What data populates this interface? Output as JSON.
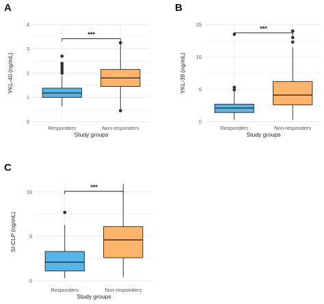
{
  "chart_data": [
    {
      "type": "box",
      "panel_label": "A",
      "title": "",
      "xlabel": "Study groups",
      "ylabel": "YKL-40 (ng/mL)",
      "ylim": [
        0,
        4
      ],
      "yticks": [
        0,
        1,
        2,
        3,
        4
      ],
      "categories": [
        "Responders",
        "Non-responders"
      ],
      "colors": [
        "#56B4E9",
        "#FDB46C"
      ],
      "boxes": [
        {
          "name": "Responders",
          "q1": 1.0,
          "median": 1.18,
          "q3": 1.38,
          "whisker_low": 0.63,
          "whisker_high": 1.9,
          "outliers": [
            2.0,
            2.1,
            2.2,
            2.3,
            2.4,
            2.7
          ]
        },
        {
          "name": "Non-responders",
          "q1": 1.45,
          "median": 1.8,
          "q3": 2.15,
          "whisker_low": 0.45,
          "whisker_high": 3.2,
          "outliers": [
            0.45,
            3.25
          ]
        }
      ],
      "significance": "***"
    },
    {
      "type": "box",
      "panel_label": "B",
      "title": "",
      "xlabel": "Study groups",
      "ylabel": "YKL-39 (ng/mL)",
      "ylim": [
        0,
        15
      ],
      "yticks": [
        0,
        5,
        10,
        15
      ],
      "categories": [
        "Responders",
        "Non-responders"
      ],
      "colors": [
        "#56B4E9",
        "#FDB46C"
      ],
      "boxes": [
        {
          "name": "Responders",
          "q1": 1.4,
          "median": 2.1,
          "q3": 2.7,
          "whisker_low": 0.3,
          "whisker_high": 4.6,
          "outliers": [
            4.9,
            5.3,
            13.5
          ]
        },
        {
          "name": "Non-responders",
          "q1": 2.6,
          "median": 4.1,
          "q3": 6.2,
          "whisker_low": 0.3,
          "whisker_high": 11.5,
          "outliers": [
            12.3,
            13.0,
            14.0
          ]
        }
      ],
      "significance": "***"
    },
    {
      "type": "box",
      "panel_label": "C",
      "title": "",
      "xlabel": "Study groups",
      "ylabel": "SI-CLP (ng/mL)",
      "ylim": [
        0,
        11
      ],
      "yticks": [
        0,
        5,
        10
      ],
      "categories": [
        "Responders",
        "Non-responders"
      ],
      "colors": [
        "#56B4E9",
        "#FDB46C"
      ],
      "boxes": [
        {
          "name": "Responders",
          "q1": 1.1,
          "median": 2.1,
          "q3": 3.3,
          "whisker_low": 0.3,
          "whisker_high": 6.3,
          "outliers": [
            7.7
          ]
        },
        {
          "name": "Non-responders",
          "q1": 2.6,
          "median": 4.6,
          "q3": 6.1,
          "whisker_low": 0.4,
          "whisker_high": 10.9,
          "outliers": []
        }
      ],
      "significance": "***"
    }
  ]
}
